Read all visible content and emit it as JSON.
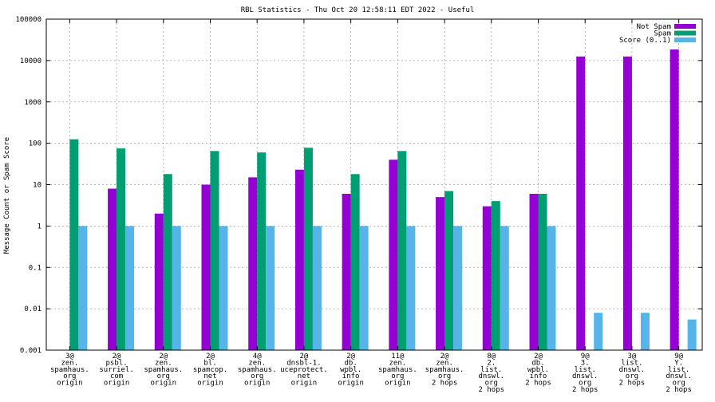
{
  "chart_data": {
    "type": "bar",
    "title": "RBL Statistics - Thu Oct 20 12:58:11 EDT 2022 - Useful",
    "xlabel": "",
    "ylabel": "Message Count or Spam Score",
    "yscale": "log",
    "ylim": [
      0.001,
      100000
    ],
    "yticks": [
      {
        "value": 0.001,
        "label": "0.001"
      },
      {
        "value": 0.01,
        "label": "0.01"
      },
      {
        "value": 0.1,
        "label": "0.1"
      },
      {
        "value": 1,
        "label": "1"
      },
      {
        "value": 10,
        "label": "10"
      },
      {
        "value": 100,
        "label": "100"
      },
      {
        "value": 1000,
        "label": "1000"
      },
      {
        "value": 10000,
        "label": "10000"
      },
      {
        "value": 100000,
        "label": "100000"
      }
    ],
    "grid": true,
    "legend_position": "top-right",
    "categories": [
      [
        "3@",
        "zen.",
        "spamhaus.",
        "org",
        "origin"
      ],
      [
        "2@",
        "psbl.",
        "surriel.",
        "com",
        "origin"
      ],
      [
        "2@",
        "zen.",
        "spamhaus.",
        "org",
        "origin"
      ],
      [
        "2@",
        "bl.",
        "spamcop.",
        "net",
        "origin"
      ],
      [
        "4@",
        "zen.",
        "spamhaus.",
        "org",
        "origin"
      ],
      [
        "2@",
        "dnsbl-1.",
        "uceprotect.",
        "net",
        "origin"
      ],
      [
        "2@",
        "db.",
        "wpbl.",
        "info",
        "origin"
      ],
      [
        "11@",
        "zen.",
        "spamhaus.",
        "org",
        "origin"
      ],
      [
        "2@",
        "zen.",
        "spamhaus.",
        "org",
        "2 hops"
      ],
      [
        "8@",
        "2.",
        "list.",
        "dnswl.",
        "org",
        "2 hops"
      ],
      [
        "2@",
        "db.",
        "wpbl.",
        "info",
        "2 hops"
      ],
      [
        "9@",
        "3.",
        "list.",
        "dnswl.",
        "org",
        "2 hops"
      ],
      [
        "3@",
        "list.",
        "dnswl.",
        "org",
        "2 hops"
      ],
      [
        "9@",
        "Y.",
        "list.",
        "dnswl.",
        "org",
        "2 hops"
      ]
    ],
    "series": [
      {
        "name": "Not Spam",
        "color": "#9400d3",
        "values": [
          null,
          8,
          2,
          10,
          15,
          23,
          6,
          40,
          5,
          3,
          6,
          12500,
          12500,
          18500
        ]
      },
      {
        "name": "Spam",
        "color": "#009e73",
        "values": [
          125,
          75,
          18,
          65,
          60,
          78,
          18,
          65,
          7,
          4,
          6,
          null,
          null,
          null
        ]
      },
      {
        "name": "Score (0..1)",
        "color": "#56b4e9",
        "values": [
          1,
          1,
          1,
          1,
          1,
          1,
          1,
          1,
          1,
          1,
          1,
          0.008,
          0.008,
          0.0055
        ]
      }
    ]
  }
}
